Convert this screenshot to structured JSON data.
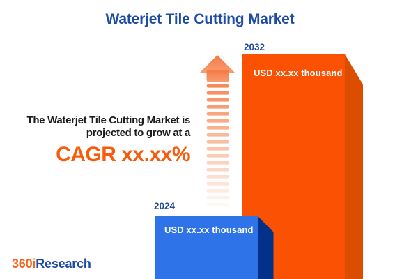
{
  "title": "Waterjet Tile Cutting Market",
  "tagline": {
    "line1": "The Waterjet Tile Cutting Market is",
    "line2": "projected to grow at a",
    "cagr": "CAGR xx.xx%"
  },
  "chart_data": {
    "type": "bar",
    "categories": [
      "2024",
      "2032"
    ],
    "value_labels": [
      "USD xx.xx thousand",
      "USD xx.xx thousand"
    ],
    "title": "Waterjet Tile Cutting Market",
    "annotation": "The Waterjet Tile Cutting Market is projected to grow at a CAGR xx.xx%",
    "orientation": "vertical",
    "legend": false,
    "bars_3d": true
  },
  "logo": {
    "prefix": "360i",
    "suffix": "Research"
  },
  "icons": {
    "growth_arrow": "up-arrow-icon"
  },
  "arrow": {
    "stripe_count": 18
  },
  "colors": {
    "title_blue": "#1d4ba6",
    "year_label_blue": "#1c4a9e",
    "tagline_black": "#1b1b1b",
    "cagr_orange": "#f95b0c",
    "bar_2032_face": "#fa5103",
    "bar_2032_side": "#db4e00",
    "bar_2024_face": "#2e73e8",
    "bar_2024_side": "#013189",
    "arrow_orange": "#f78b58",
    "value_text_white": "#ffffff",
    "logo_orange": "#f26822",
    "logo_blue": "#1d4ba8"
  }
}
